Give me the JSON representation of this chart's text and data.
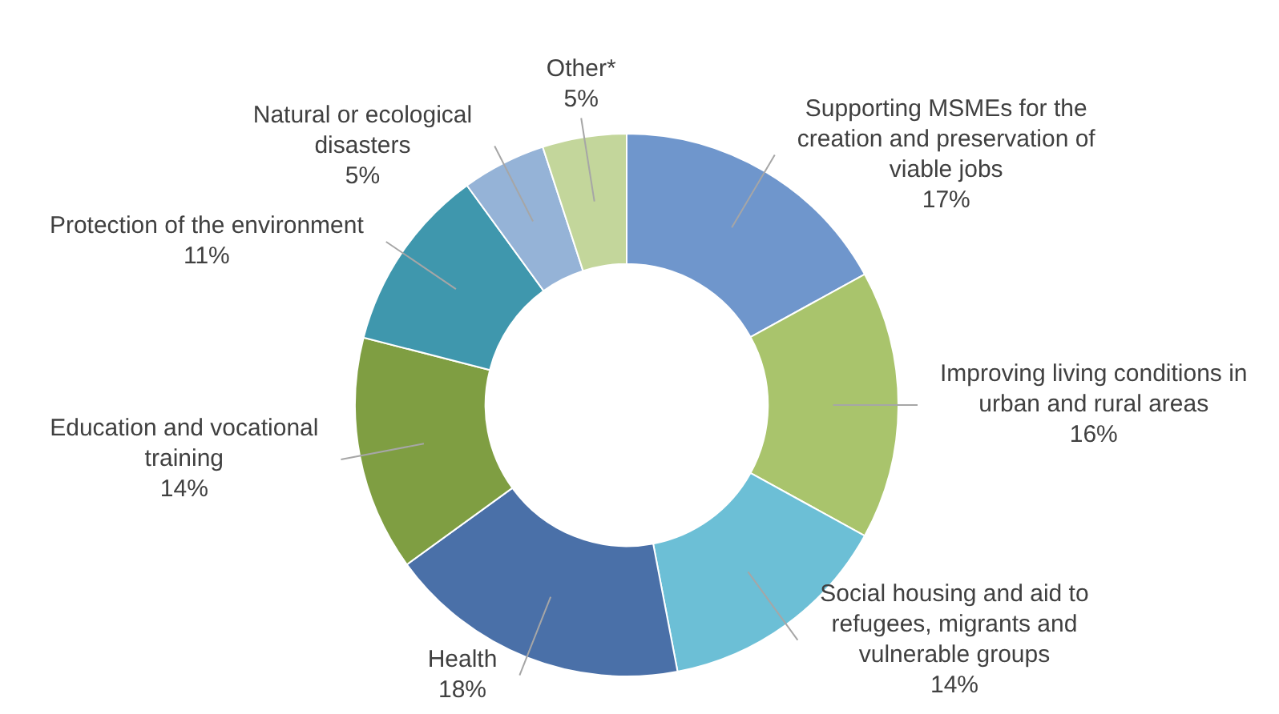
{
  "chart_data": {
    "type": "donut",
    "categories": [
      "Supporting MSMEs for the creation and preservation of viable jobs",
      "Improving living conditions in urban and rural areas",
      "Social housing and aid to refugees, migrants and vulnerable groups",
      "Health",
      "Education and vocational training",
      "Protection of the environment",
      "Natural or ecological disasters",
      "Other*"
    ],
    "values": [
      17,
      16,
      14,
      18,
      14,
      11,
      5,
      5
    ],
    "value_labels": [
      "17%",
      "16%",
      "14%",
      "18%",
      "14%",
      "11%",
      "5%",
      "5%"
    ],
    "colors": [
      "#6f96cc",
      "#a9c46c",
      "#6cbfd6",
      "#4a70a8",
      "#7f9e42",
      "#3f97ad",
      "#95b3d7",
      "#c3d69b"
    ],
    "legend": false
  }
}
